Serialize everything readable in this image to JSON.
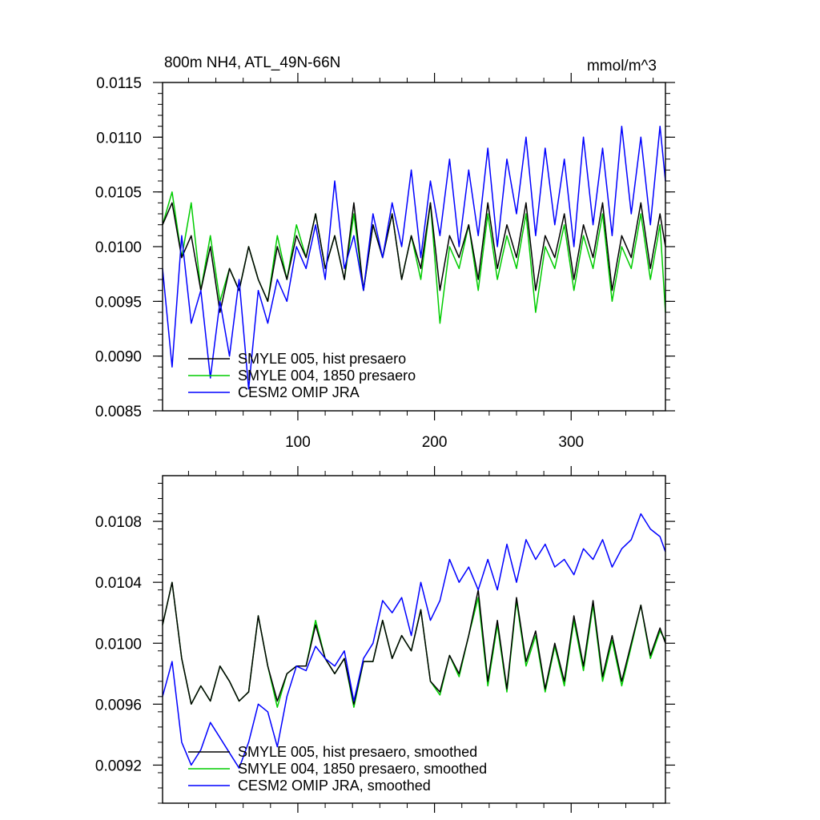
{
  "chart_data": [
    {
      "type": "line",
      "title": "800m NH4, ATL_49N-66N",
      "units": "mmol/m^3",
      "xlabel": "",
      "ylabel": "",
      "xlim": [
        1,
        369
      ],
      "ylim": [
        0.0085,
        0.0115
      ],
      "x_ticks": [
        100,
        200,
        300
      ],
      "x_tick_labels": [
        "100",
        "200",
        "300"
      ],
      "y_ticks": [
        0.0085,
        0.009,
        0.0095,
        0.01,
        0.0105,
        0.011,
        0.0115
      ],
      "y_tick_labels": [
        "0.0085",
        "0.0090",
        "0.0095",
        "0.0100",
        "0.0105",
        "0.0110",
        "0.0115"
      ],
      "legend_position": "bottom-left",
      "series": [
        {
          "name": "SMYLE 005, hist presaero",
          "color": "#000000",
          "x": [
            1,
            8,
            15,
            22,
            29,
            36,
            43,
            50,
            57,
            64,
            71,
            78,
            85,
            92,
            99,
            106,
            113,
            120,
            127,
            134,
            141,
            148,
            155,
            162,
            169,
            176,
            183,
            190,
            197,
            204,
            211,
            218,
            225,
            232,
            239,
            246,
            253,
            260,
            267,
            274,
            281,
            288,
            295,
            302,
            309,
            316,
            323,
            330,
            337,
            344,
            351,
            358,
            365,
            369
          ],
          "values": [
            0.0102,
            0.0104,
            0.0099,
            0.0101,
            0.0096,
            0.01,
            0.0094,
            0.0098,
            0.0096,
            0.01,
            0.0097,
            0.0095,
            0.01,
            0.0097,
            0.0101,
            0.0099,
            0.0103,
            0.0098,
            0.0101,
            0.0097,
            0.0104,
            0.0096,
            0.0102,
            0.0099,
            0.0103,
            0.0097,
            0.0101,
            0.0098,
            0.0104,
            0.0096,
            0.0101,
            0.0099,
            0.0102,
            0.0097,
            0.0104,
            0.0098,
            0.0102,
            0.0099,
            0.0104,
            0.0096,
            0.0101,
            0.0099,
            0.0103,
            0.0097,
            0.0102,
            0.0099,
            0.0104,
            0.0096,
            0.0101,
            0.0099,
            0.0104,
            0.0098,
            0.0103,
            0.01
          ]
        },
        {
          "name": "SMYLE 004, 1850 presaero",
          "color": "#00cc00",
          "x": [
            1,
            8,
            15,
            22,
            29,
            36,
            43,
            50,
            57,
            64,
            71,
            78,
            85,
            92,
            99,
            106,
            113,
            120,
            127,
            134,
            141,
            148,
            155,
            162,
            169,
            176,
            183,
            190,
            197,
            204,
            211,
            218,
            225,
            232,
            239,
            246,
            253,
            260,
            267,
            274,
            281,
            288,
            295,
            302,
            309,
            316,
            323,
            330,
            337,
            344,
            351,
            358,
            365,
            369
          ],
          "values": [
            0.0102,
            0.0105,
            0.0099,
            0.0104,
            0.0096,
            0.0101,
            0.0095,
            0.0098,
            0.0096,
            0.01,
            0.0097,
            0.0095,
            0.0101,
            0.0097,
            0.0102,
            0.0099,
            0.0103,
            0.0098,
            0.0101,
            0.0097,
            0.0103,
            0.0096,
            0.0102,
            0.0099,
            0.0103,
            0.0097,
            0.0101,
            0.0097,
            0.0104,
            0.0093,
            0.01,
            0.0098,
            0.0102,
            0.0096,
            0.0103,
            0.0097,
            0.0101,
            0.0098,
            0.0103,
            0.0094,
            0.01,
            0.0098,
            0.0102,
            0.0096,
            0.0101,
            0.0098,
            0.0103,
            0.0095,
            0.01,
            0.0098,
            0.0103,
            0.0097,
            0.0102,
            0.0094
          ]
        },
        {
          "name": "CESM2 OMIP JRA",
          "color": "#0000ff",
          "x": [
            1,
            8,
            15,
            22,
            29,
            36,
            43,
            50,
            57,
            64,
            71,
            78,
            85,
            92,
            99,
            106,
            113,
            120,
            127,
            134,
            141,
            148,
            155,
            162,
            169,
            176,
            183,
            190,
            197,
            204,
            211,
            218,
            225,
            232,
            239,
            246,
            253,
            260,
            267,
            274,
            281,
            288,
            295,
            302,
            309,
            316,
            323,
            330,
            337,
            344,
            351,
            358,
            365,
            369
          ],
          "values": [
            0.0098,
            0.0089,
            0.0101,
            0.0093,
            0.0096,
            0.0088,
            0.0095,
            0.009,
            0.0097,
            0.0087,
            0.0096,
            0.0093,
            0.0097,
            0.0095,
            0.01,
            0.0098,
            0.0102,
            0.0097,
            0.0106,
            0.0098,
            0.0101,
            0.0096,
            0.0103,
            0.0099,
            0.0104,
            0.01,
            0.0107,
            0.0099,
            0.0106,
            0.0101,
            0.0108,
            0.01,
            0.0107,
            0.0101,
            0.0109,
            0.01,
            0.0108,
            0.0103,
            0.011,
            0.0101,
            0.0109,
            0.0102,
            0.0108,
            0.01,
            0.011,
            0.0102,
            0.0109,
            0.0101,
            0.0111,
            0.0103,
            0.011,
            0.0102,
            0.0111,
            0.0106
          ]
        }
      ]
    },
    {
      "type": "line",
      "title": "",
      "xlabel": "",
      "ylabel": "",
      "xlim": [
        1,
        369
      ],
      "ylim": [
        0.00895,
        0.0111
      ],
      "x_ticks": [
        100,
        200,
        300
      ],
      "x_tick_labels": [],
      "y_ticks": [
        0.0092,
        0.0096,
        0.01,
        0.0104,
        0.0108
      ],
      "y_tick_labels": [
        "0.0092",
        "0.0096",
        "0.0100",
        "0.0104",
        "0.0108"
      ],
      "legend_position": "bottom-left",
      "series": [
        {
          "name": "SMYLE 005, hist presaero, smoothed",
          "color": "#000000",
          "x": [
            1,
            8,
            15,
            22,
            29,
            36,
            43,
            50,
            57,
            64,
            71,
            78,
            85,
            92,
            99,
            106,
            113,
            120,
            127,
            134,
            141,
            148,
            155,
            162,
            169,
            176,
            183,
            190,
            197,
            204,
            211,
            218,
            225,
            232,
            239,
            246,
            253,
            260,
            267,
            274,
            281,
            288,
            295,
            302,
            309,
            316,
            323,
            330,
            337,
            344,
            351,
            358,
            365,
            369
          ],
          "values": [
            0.01012,
            0.0104,
            0.0099,
            0.0096,
            0.00972,
            0.00962,
            0.00985,
            0.00975,
            0.00962,
            0.00968,
            0.01018,
            0.00985,
            0.00962,
            0.0098,
            0.00985,
            0.00985,
            0.01012,
            0.0099,
            0.0098,
            0.0099,
            0.0096,
            0.00988,
            0.00988,
            0.01015,
            0.0099,
            0.01005,
            0.00995,
            0.01022,
            0.00975,
            0.00968,
            0.00992,
            0.0098,
            0.01005,
            0.01035,
            0.00975,
            0.01015,
            0.0097,
            0.0103,
            0.00988,
            0.01008,
            0.0097,
            0.01,
            0.00975,
            0.01018,
            0.00985,
            0.01028,
            0.00978,
            0.01005,
            0.00975,
            0.01,
            0.01025,
            0.00992,
            0.0101,
            0.01
          ]
        },
        {
          "name": "SMYLE 004, 1850 presaero, smoothed",
          "color": "#00cc00",
          "x": [
            1,
            8,
            15,
            22,
            29,
            36,
            43,
            50,
            57,
            64,
            71,
            78,
            85,
            92,
            99,
            106,
            113,
            120,
            127,
            134,
            141,
            148,
            155,
            162,
            169,
            176,
            183,
            190,
            197,
            204,
            211,
            218,
            225,
            232,
            239,
            246,
            253,
            260,
            267,
            274,
            281,
            288,
            295,
            302,
            309,
            316,
            323,
            330,
            337,
            344,
            351,
            358,
            365,
            369
          ],
          "values": [
            0.01012,
            0.0104,
            0.0099,
            0.0096,
            0.00972,
            0.00962,
            0.00985,
            0.00975,
            0.00962,
            0.00968,
            0.01018,
            0.00985,
            0.00958,
            0.0098,
            0.00985,
            0.00985,
            0.01015,
            0.0099,
            0.0098,
            0.0099,
            0.00958,
            0.00988,
            0.00988,
            0.01015,
            0.0099,
            0.01005,
            0.00995,
            0.01022,
            0.00975,
            0.00966,
            0.00992,
            0.00978,
            0.01005,
            0.0103,
            0.00972,
            0.01012,
            0.00968,
            0.01028,
            0.00985,
            0.01005,
            0.00968,
            0.00998,
            0.00972,
            0.01015,
            0.00982,
            0.01025,
            0.00975,
            0.01002,
            0.00972,
            0.00998,
            0.01025,
            0.0099,
            0.01008,
            0.01002
          ]
        },
        {
          "name": "CESM2 OMIP JRA, smoothed",
          "color": "#0000ff",
          "x": [
            1,
            8,
            15,
            22,
            29,
            36,
            43,
            50,
            57,
            64,
            71,
            78,
            85,
            92,
            99,
            106,
            113,
            120,
            127,
            134,
            141,
            148,
            155,
            162,
            169,
            176,
            183,
            190,
            197,
            204,
            211,
            218,
            225,
            232,
            239,
            246,
            253,
            260,
            267,
            274,
            281,
            288,
            295,
            302,
            309,
            316,
            323,
            330,
            337,
            344,
            351,
            358,
            365,
            369
          ],
          "values": [
            0.00965,
            0.00988,
            0.00935,
            0.0092,
            0.0093,
            0.00948,
            0.00938,
            0.00928,
            0.00918,
            0.00935,
            0.0096,
            0.00955,
            0.00932,
            0.00965,
            0.00985,
            0.00982,
            0.00998,
            0.0099,
            0.00985,
            0.00995,
            0.00962,
            0.0099,
            0.01,
            0.01028,
            0.0102,
            0.0103,
            0.01005,
            0.0104,
            0.01015,
            0.01028,
            0.01055,
            0.0104,
            0.0105,
            0.01035,
            0.01055,
            0.01035,
            0.01065,
            0.0104,
            0.01068,
            0.01055,
            0.01065,
            0.0105,
            0.01055,
            0.01045,
            0.01062,
            0.01055,
            0.01068,
            0.0105,
            0.01062,
            0.01068,
            0.01085,
            0.01075,
            0.0107,
            0.0106
          ]
        }
      ]
    }
  ]
}
